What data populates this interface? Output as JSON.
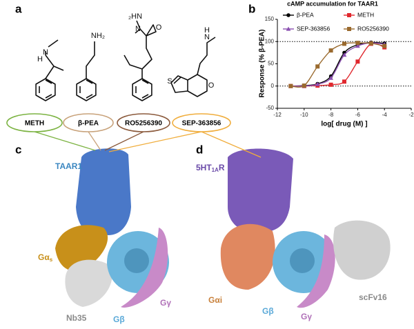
{
  "panel_a": {
    "label": "a",
    "molecules": [
      {
        "atoms": [
          "N",
          "H"
        ],
        "name": "METH",
        "color": "#7cb342"
      },
      {
        "atoms": [
          "NH₂"
        ],
        "name": "β-PEA",
        "color": "#c8a27a"
      },
      {
        "atoms": [
          "₂HN",
          "N",
          "O"
        ],
        "name": "RO5256390",
        "color": "#8b5a3c"
      },
      {
        "atoms": [
          "N",
          "H",
          "S",
          "O"
        ],
        "name": "SEP-363856",
        "color": "#f0ad3c"
      }
    ]
  },
  "chart_data": {
    "type": "line",
    "label": "b",
    "title": "cAMP accumulation for TAAR1",
    "x_label": "log[ drug (M) ]",
    "y_label": "Response (% β-PEA)",
    "x": [
      -11,
      -10,
      -9,
      -8,
      -7,
      -6,
      -5,
      -4
    ],
    "series": [
      {
        "name": "β-PEA",
        "color": "#000000",
        "marker": "circle",
        "values": [
          0,
          1,
          5,
          22,
          75,
          93,
          98,
          96
        ]
      },
      {
        "name": "METH",
        "color": "#e0282e",
        "marker": "square",
        "values": [
          0,
          0,
          1,
          3,
          10,
          55,
          95,
          87
        ]
      },
      {
        "name": "SEP-363856",
        "color": "#8a4fb0",
        "marker": "triangle",
        "values": [
          0,
          0,
          4,
          18,
          70,
          90,
          97,
          94
        ]
      },
      {
        "name": "RO5256390",
        "color": "#9a6a2e",
        "marker": "square",
        "values": [
          0,
          1,
          44,
          80,
          95,
          97,
          96,
          90
        ]
      }
    ],
    "xlim": [
      -12,
      -2
    ],
    "ylim": [
      -50,
      150
    ],
    "xticks": [
      -12,
      -10,
      -8,
      -6,
      -4,
      -2
    ],
    "yticks": [
      -50,
      0,
      50,
      100,
      150
    ],
    "reference_lines": [
      0,
      100
    ]
  },
  "panel_c": {
    "label": "c",
    "components": [
      {
        "text": "TAAR1",
        "color": "#3a86c0"
      },
      {
        "text": "Gα",
        "sub": "s",
        "color": "#c8901a"
      },
      {
        "text": "Nb35",
        "color": "#8a8a8a"
      },
      {
        "text": "Gβ",
        "color": "#5aa9d8"
      },
      {
        "text": "Gγ",
        "color": "#b070b8"
      }
    ]
  },
  "panel_d": {
    "label": "d",
    "components": [
      {
        "text": "5HT",
        "sub": "1A",
        "tail": "R",
        "color": "#6a4aa8"
      },
      {
        "text": "Gαi",
        "color": "#c8803a"
      },
      {
        "text": "Gβ",
        "color": "#5aa9d8"
      },
      {
        "text": "Gγ",
        "color": "#b070b8"
      },
      {
        "text": "scFv16",
        "color": "#8a8a8a"
      }
    ]
  }
}
